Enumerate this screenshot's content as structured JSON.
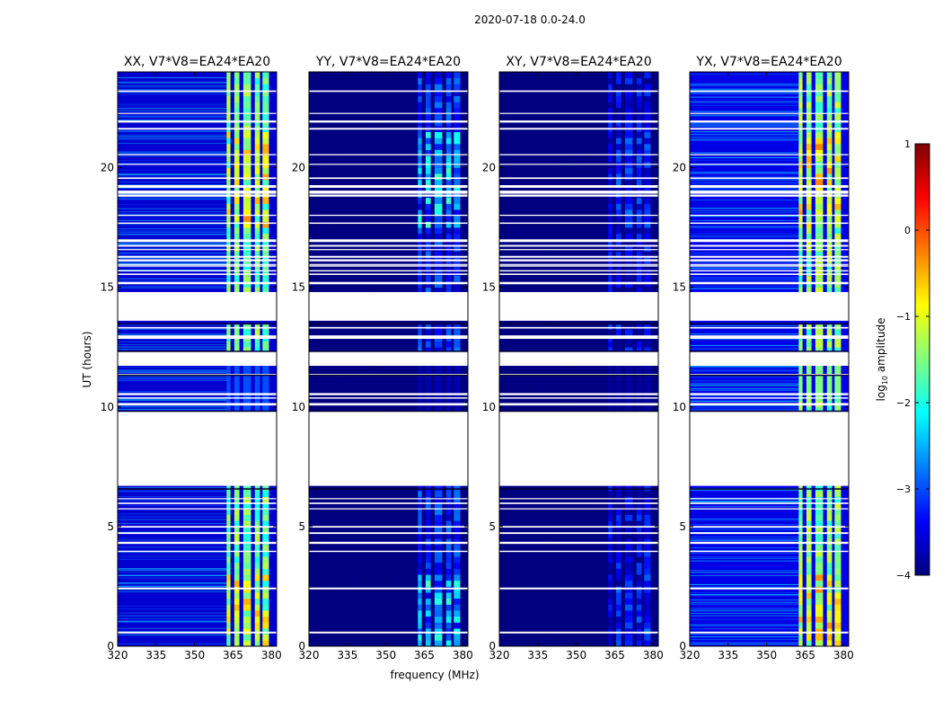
{
  "figure": {
    "suptitle": "2020-07-18 0.0-24.0",
    "xlabel": "frequency (MHz)",
    "ylabel": "UT (hours)"
  },
  "colorbar": {
    "label_prefix": "log",
    "label_sub": "10",
    "label_suffix": " amplitude",
    "range": [
      -4,
      1
    ],
    "ticks": [
      "1",
      "0",
      "−1",
      "−2",
      "−3",
      "−4"
    ],
    "colormap": "jet",
    "stops": [
      "#00007f",
      "#0000ff",
      "#007fff",
      "#00ffff",
      "#7fff7f",
      "#ffff00",
      "#ff7f00",
      "#ff0000",
      "#7f0000"
    ]
  },
  "chart_data": {
    "type": "heatmap",
    "x": {
      "label": "frequency (MHz)",
      "range": [
        320,
        382
      ],
      "ticks": [
        "320",
        "335",
        "350",
        "365",
        "380"
      ]
    },
    "y": {
      "label": "UT (hours)",
      "range": [
        0,
        24
      ],
      "ticks": [
        "0",
        "5",
        "10",
        "15",
        "20"
      ]
    },
    "value_label": "log10 amplitude",
    "value_range": [
      -4,
      1
    ],
    "no_data_intervals_ut": [
      [
        6.7,
        9.8
      ],
      [
        11.8,
        12.3
      ],
      [
        13.6,
        14.8
      ]
    ],
    "band_freq_mhz": [
      362.5,
      379
    ],
    "panels": [
      {
        "title": "XX, V7*V8=EA24*EA20",
        "background_log_amp": -3.6,
        "band_log_amp": -1.6,
        "band_peak_log_amp": -0.7
      },
      {
        "title": "YY, V7*V8=EA24*EA20",
        "background_log_amp": -4.0,
        "band_log_amp": -3.2,
        "band_peak_log_amp": -2.0
      },
      {
        "title": "XY, V7*V8=EA24*EA20",
        "background_log_amp": -4.0,
        "band_log_amp": -3.5,
        "band_peak_log_amp": -3.2
      },
      {
        "title": "YX, V7*V8=EA24*EA20",
        "background_log_amp": -3.5,
        "band_log_amp": -1.5,
        "band_peak_log_amp": -0.6
      }
    ]
  }
}
